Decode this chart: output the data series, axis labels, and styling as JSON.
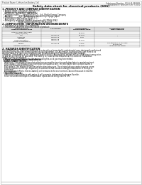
{
  "bg_color": "#ffffff",
  "header_left": "Product Name: Lithium Ion Battery Cell",
  "header_right_line1": "Substance Number: SDS-LiB-050810",
  "header_right_line2": "Established / Revision: Dec.7.2010",
  "title": "Safety data sheet for chemical products (SDS)",
  "section1_title": "1. PRODUCT AND COMPANY IDENTIFICATION",
  "section1_lines": [
    "  • Product name: Lithium Ion Battery Cell",
    "  • Product code: Cylindrical-type cell",
    "    (AF18650U, 1AF18650U, 1AF18650A)",
    "  • Company name:      Sanyo Electric Co., Ltd., Mobile Energy Company",
    "  • Address:            2001 Kamikosaka, Sumoto City, Hyogo, Japan",
    "  • Telephone number: +81-799-26-4111",
    "  • Fax number: +81-799-26-4129",
    "  • Emergency telephone number (daytime):+81-799-26-3962",
    "                              (Night and holiday):+81-799-26-4129"
  ],
  "section2_title": "2. COMPOSITION / INFORMATION ON INGREDIENTS",
  "section2_pre": "  • Substance or preparation: Preparation",
  "section2_sub": "  • Information about the chemical nature of product:",
  "table_headers": [
    "Chemical name /\nCommon chemical name",
    "CAS number",
    "Concentration /\nConcentration range",
    "Classification and\nhazard labeling"
  ],
  "table_rows": [
    [
      "Lithium cobalt tantalate\n(LiMn/Co/PbO4)",
      "-",
      "30-60%",
      ""
    ],
    [
      "Iron",
      "7439-89-6",
      "16-20%",
      "-"
    ],
    [
      "Aluminum",
      "7429-90-5",
      "2-6%",
      "-"
    ],
    [
      "Graphite\n(India graphite-I)\n(Artificial graphite-II)",
      "7782-42-5\n7782-40-3",
      "10-20%",
      ""
    ],
    [
      "Copper",
      "7440-50-8",
      "5-15%",
      "Sensitization of the skin\ngroup R43"
    ],
    [
      "Organic electrolyte",
      "-",
      "10-20%",
      "Inflammable liquid"
    ]
  ],
  "section3_title": "3. HAZARDS IDENTIFICATION",
  "section3_lines": [
    "For the battery cell, chemical substances are stored in a hermetically sealed metal case, designed to withstand",
    "temperatures during the normal operations during normal use. As a result, during normal use, there is no",
    "physical danger of ignition or explosion and therefore danger of hazardous materials leakage.",
    "  However, if exposed to a fire, added mechanical shocks, decomposed, written electric short circuits may arise.",
    "Its gas release cannot be operated. The battery cell case will be breached at fire-extreme. Hazardous",
    "materials may be released.",
    "  Moreover, if heated strongly by the surrounding fire, acid gas may be emitted.",
    "  • Most important hazard and effects:",
    "  Human health effects:",
    "    Inhalation: The release of the electrolyte has an anesthesia action and stimulates in respiratory tract.",
    "    Skin contact: The release of the electrolyte stimulates a skin. The electrolyte skin contact causes a",
    "    sore and stimulation on the skin.",
    "    Eye contact: The release of the electrolyte stimulates eyes. The electrolyte eye contact causes a sore",
    "    and stimulation on the eye. Especially, a substance that causes a strong inflammation of the eye is",
    "    contained.",
    "    Environmental effects: Since a battery cell remains in the environment, do not throw out it into the",
    "    environment.",
    "  • Specific hazards:",
    "    If the electrolyte contacts with water, it will generate detrimental hydrogen fluoride.",
    "    Since the used electrolyte is inflammable liquid, do not bring close to fire."
  ],
  "bold_lines": [
    7,
    8,
    17
  ],
  "footer_line": true
}
